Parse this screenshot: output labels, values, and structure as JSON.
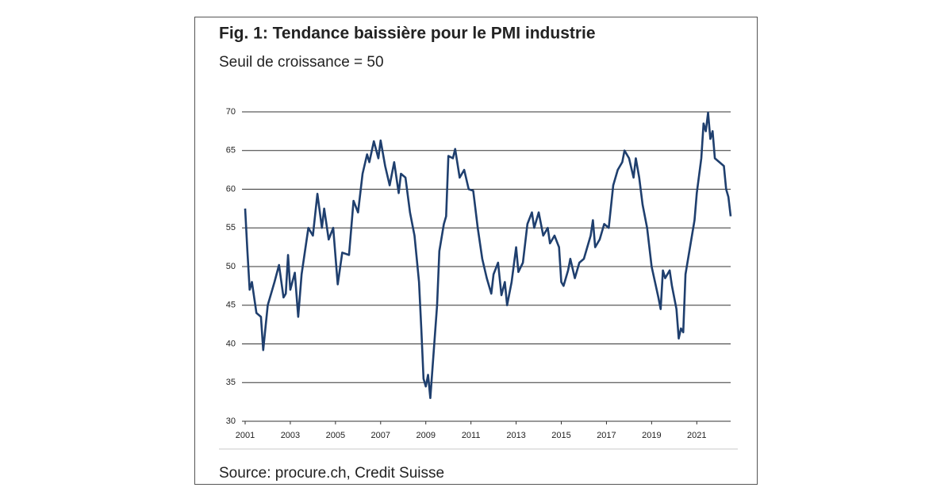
{
  "chart_data": {
    "type": "line",
    "title": "Fig. 1: Tendance baissière pour le PMI industrie",
    "subtitle": "Seuil de croissance = 50",
    "source": "Source: procure.ch, Credit Suisse",
    "color": "#1f3f6e",
    "grid": true,
    "xlim": [
      2001,
      2022.5
    ],
    "xticks": [
      2001,
      2003,
      2005,
      2007,
      2009,
      2011,
      2013,
      2015,
      2017,
      2019,
      2021
    ],
    "ylim": [
      30,
      70
    ],
    "yticks": [
      30,
      35,
      40,
      45,
      50,
      55,
      60,
      65,
      70
    ],
    "x": [
      2001.0,
      2001.1,
      2001.2,
      2001.3,
      2001.5,
      2001.7,
      2001.8,
      2002.0,
      2002.3,
      2002.5,
      2002.7,
      2002.8,
      2002.9,
      2003.0,
      2003.2,
      2003.35,
      2003.5,
      2003.8,
      2004.0,
      2004.2,
      2004.4,
      2004.5,
      2004.7,
      2004.9,
      2005.1,
      2005.3,
      2005.6,
      2005.8,
      2006.0,
      2006.2,
      2006.4,
      2006.5,
      2006.7,
      2006.9,
      2007.0,
      2007.2,
      2007.4,
      2007.6,
      2007.8,
      2007.9,
      2008.1,
      2008.3,
      2008.5,
      2008.7,
      2008.8,
      2008.9,
      2009.0,
      2009.1,
      2009.2,
      2009.3,
      2009.5,
      2009.6,
      2009.8,
      2009.9,
      2010.0,
      2010.2,
      2010.3,
      2010.5,
      2010.7,
      2010.9,
      2011.1,
      2011.3,
      2011.5,
      2011.7,
      2011.9,
      2012.0,
      2012.2,
      2012.35,
      2012.5,
      2012.6,
      2012.8,
      2013.0,
      2013.1,
      2013.3,
      2013.5,
      2013.7,
      2013.8,
      2014.0,
      2014.2,
      2014.4,
      2014.5,
      2014.7,
      2014.9,
      2015.0,
      2015.1,
      2015.3,
      2015.4,
      2015.6,
      2015.8,
      2016.0,
      2016.3,
      2016.4,
      2016.5,
      2016.7,
      2016.9,
      2017.1,
      2017.3,
      2017.5,
      2017.7,
      2017.8,
      2018.0,
      2018.2,
      2018.3,
      2018.45,
      2018.6,
      2018.8,
      2019.0,
      2019.15,
      2019.3,
      2019.4,
      2019.5,
      2019.6,
      2019.8,
      2019.9,
      2020.1,
      2020.2,
      2020.3,
      2020.4,
      2020.5,
      2020.7,
      2020.9,
      2021.0,
      2021.2,
      2021.3,
      2021.4,
      2021.5,
      2021.6,
      2021.7,
      2021.8,
      2022.0,
      2022.2,
      2022.3,
      2022.4,
      2022.5
    ],
    "values": [
      57.5,
      52,
      47,
      48,
      44,
      43.5,
      39.2,
      45,
      48,
      50.2,
      46,
      46.5,
      51.5,
      47,
      49.2,
      43.5,
      49,
      55,
      54,
      59.4,
      55,
      57.5,
      53.5,
      55,
      47.7,
      51.8,
      51.5,
      58.5,
      57,
      62,
      64.5,
      63.5,
      66.2,
      64,
      66.3,
      63,
      60.5,
      63.5,
      59.5,
      62,
      61.5,
      57,
      54,
      48,
      42,
      35.5,
      34.5,
      36,
      33,
      37,
      45,
      52,
      55.5,
      56.5,
      64.3,
      64,
      65.2,
      61.5,
      62.5,
      60,
      59.8,
      55,
      51,
      48.5,
      46.5,
      49,
      50.5,
      46.3,
      48,
      45,
      48,
      52.5,
      49.3,
      50.5,
      55.5,
      57,
      55,
      57,
      54,
      55,
      53,
      54,
      52.5,
      48,
      47.5,
      49.5,
      51,
      48.5,
      50.5,
      51,
      54,
      56,
      52.5,
      53.5,
      55.5,
      55,
      60.5,
      62.5,
      63.5,
      65,
      64,
      61.5,
      64,
      61.5,
      58,
      55,
      50,
      48,
      46,
      44.5,
      49.5,
      48.5,
      49.5,
      47.5,
      44.5,
      40.7,
      42,
      41.5,
      49,
      52.5,
      56,
      59.5,
      64,
      68.5,
      67.5,
      69.9,
      66.5,
      67.5,
      64,
      63.5,
      63,
      60,
      59,
      56.5
    ]
  }
}
